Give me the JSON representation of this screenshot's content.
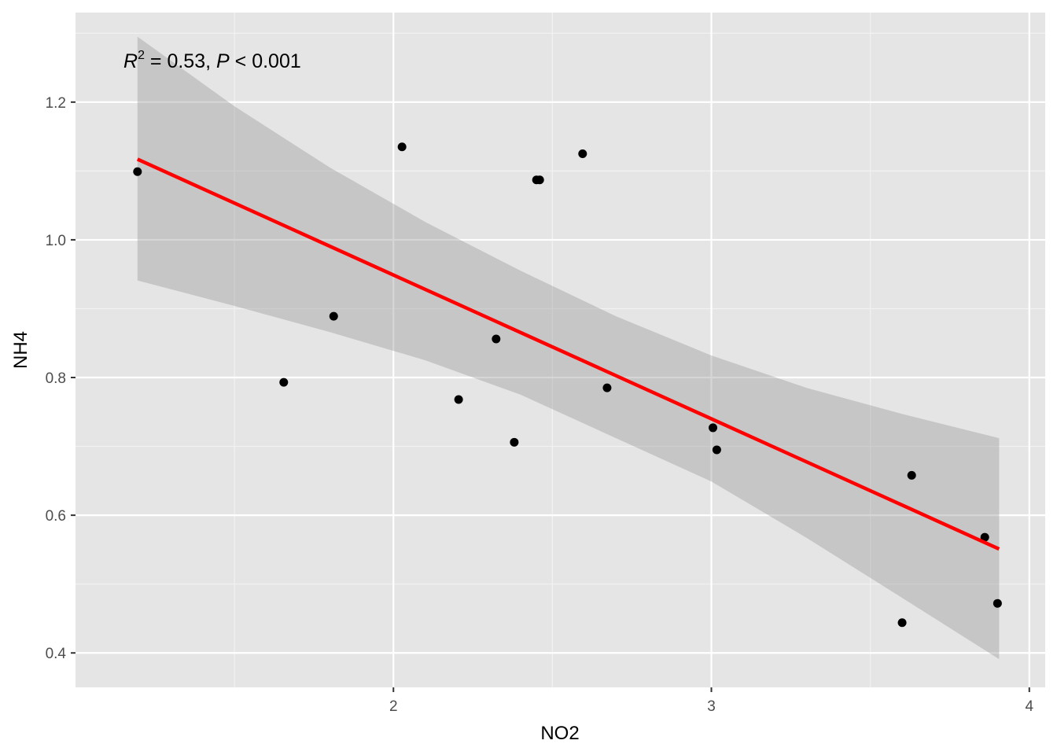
{
  "chart_data": {
    "type": "scatter",
    "title": "",
    "xlabel": "NO2",
    "ylabel": "NH4",
    "xlim": [
      1.0,
      4.05
    ],
    "ylim": [
      0.35,
      1.33
    ],
    "x_ticks": [
      2,
      3,
      4
    ],
    "x_tick_labels": [
      "2",
      "3",
      "4"
    ],
    "y_ticks": [
      0.4,
      0.6,
      0.8,
      1.0,
      1.2
    ],
    "y_tick_labels": [
      "0.4",
      "0.6",
      "0.8",
      "1.0",
      "1.2"
    ],
    "grid": true,
    "legend": "none",
    "points": {
      "x": [
        1.195,
        1.655,
        1.812,
        2.027,
        2.205,
        2.323,
        2.38,
        2.45,
        2.46,
        2.595,
        2.672,
        3.005,
        3.017,
        3.6,
        3.63,
        3.86,
        3.9
      ],
      "y": [
        1.099,
        0.793,
        0.889,
        1.135,
        0.768,
        0.856,
        0.706,
        1.087,
        1.087,
        1.125,
        0.785,
        0.727,
        0.695,
        0.444,
        0.658,
        0.568,
        0.472
      ],
      "color": "#000000"
    },
    "fit_line": {
      "x": [
        1.195,
        3.905
      ],
      "y": [
        1.117,
        0.551
      ],
      "color": "#ff0000"
    },
    "confidence_band": {
      "x": [
        1.195,
        1.5,
        1.8,
        2.1,
        2.4,
        2.7,
        3.0,
        3.3,
        3.6,
        3.905
      ],
      "upper": [
        1.295,
        1.194,
        1.105,
        1.026,
        0.955,
        0.889,
        0.832,
        0.785,
        0.747,
        0.712
      ],
      "lower": [
        0.941,
        0.904,
        0.866,
        0.825,
        0.775,
        0.712,
        0.649,
        0.567,
        0.48,
        0.391
      ],
      "color": "#999999"
    },
    "annotation": {
      "r_symbol": "R",
      "superscript": "2",
      "text_after_r": " = 0.53, ",
      "p_symbol": "P",
      "text_after_p": " < 0.001"
    },
    "colors": {
      "panel_background": "#e5e5e5",
      "grid_major": "#ffffff",
      "grid_minor": "#f2f2f2"
    }
  }
}
